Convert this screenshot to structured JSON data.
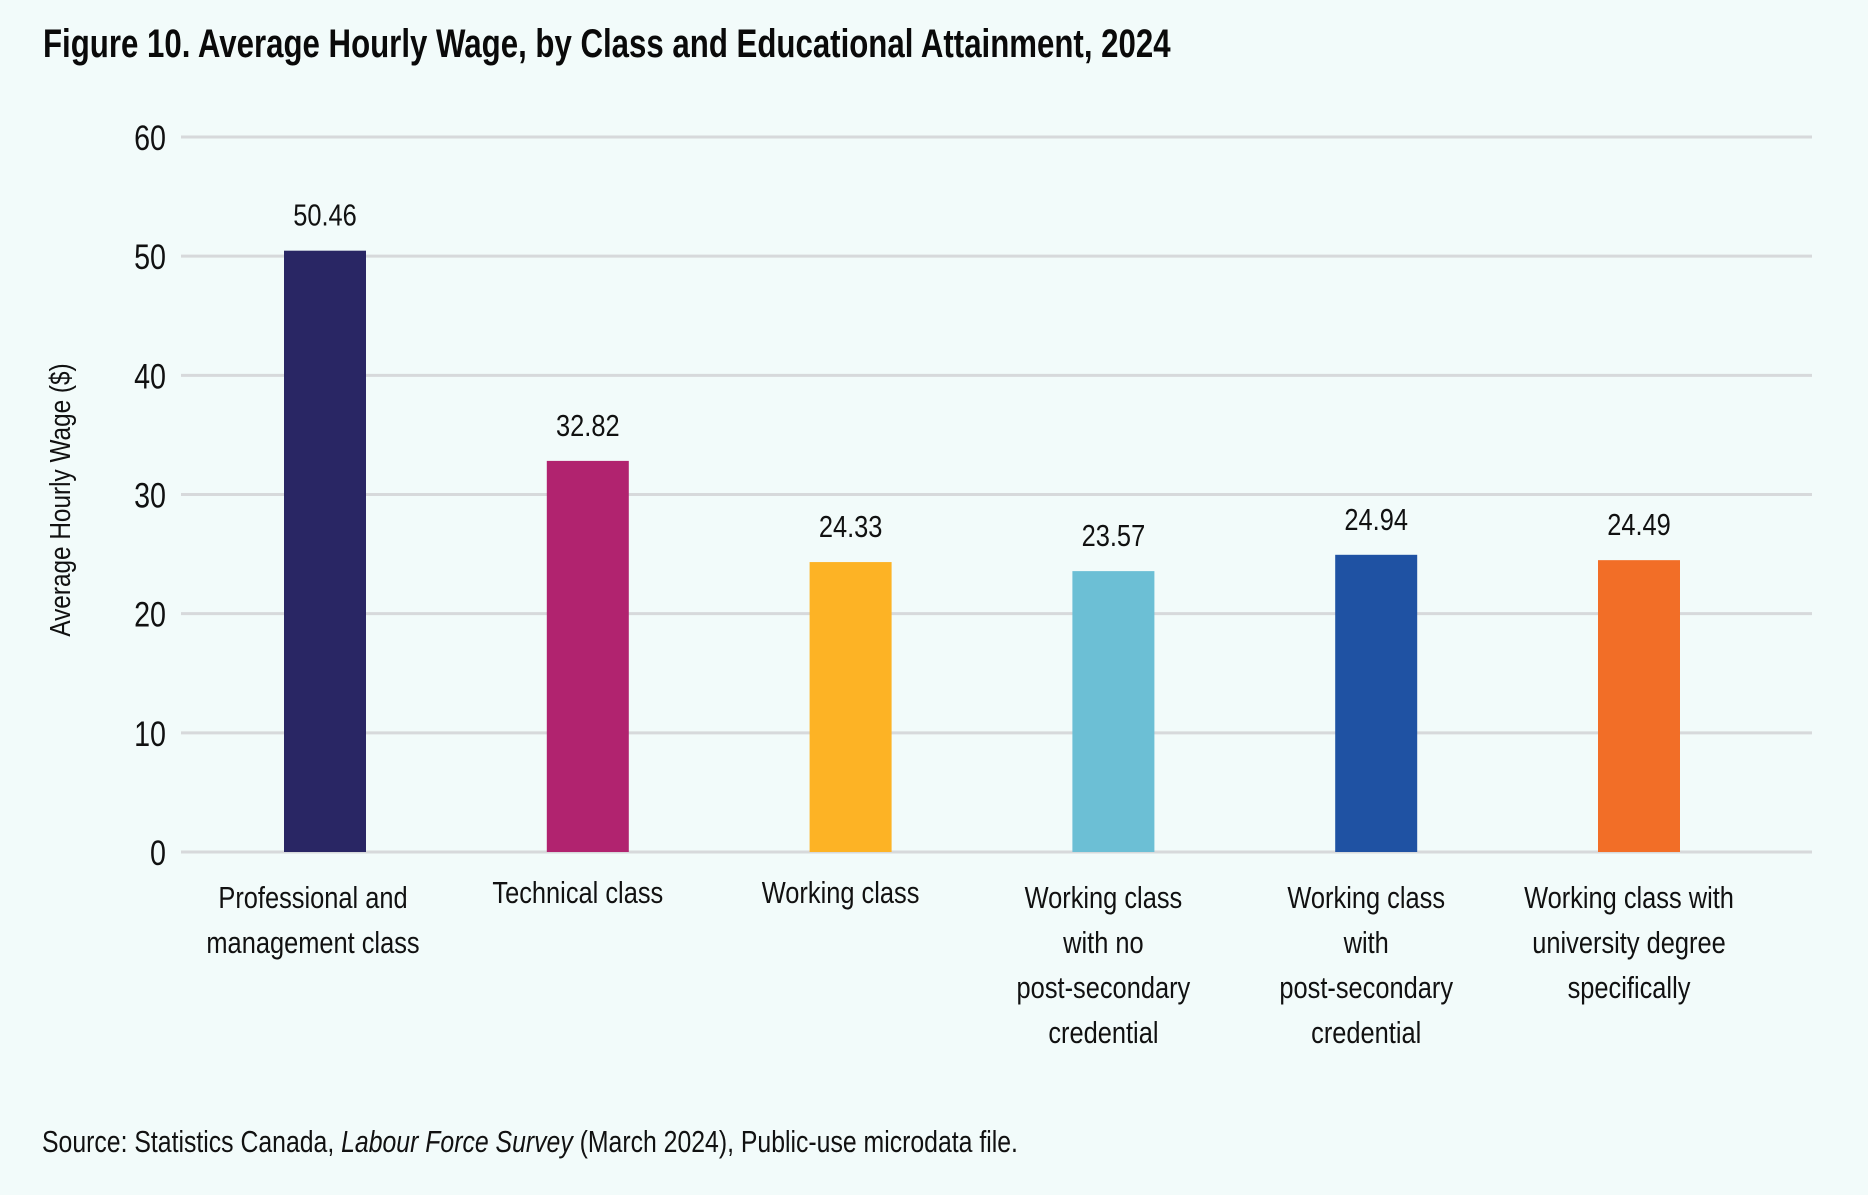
{
  "title": "Figure 10. Average Hourly Wage, by Class and Educational Attainment, 2024",
  "source": {
    "prefix": "Source: Statistics Canada, ",
    "italic": "Labour Force Survey",
    "suffix": " (March 2024), Public-use microdata file."
  },
  "chart_data": {
    "type": "bar",
    "title": "Figure 10. Average Hourly Wage, by Class and Educational Attainment, 2024",
    "xlabel": "",
    "ylabel": "Average Hourly Wage ($)",
    "ylim": [
      0,
      60
    ],
    "yticks": [
      0,
      10,
      20,
      30,
      40,
      50,
      60
    ],
    "grid": true,
    "legend": "none",
    "categories": [
      [
        "Professional and",
        "management class"
      ],
      [
        "Technical class"
      ],
      [
        "Working class"
      ],
      [
        "Working class",
        "with no",
        "post-secondary",
        "credential"
      ],
      [
        "Working class",
        "with",
        "post-secondary",
        "credential"
      ],
      [
        "Working class with",
        "university degree",
        "specifically"
      ]
    ],
    "values": [
      50.46,
      32.82,
      24.33,
      23.57,
      24.94,
      24.49
    ],
    "value_labels": [
      "50.46",
      "32.82",
      "24.33",
      "23.57",
      "24.94",
      "24.49"
    ],
    "colors": [
      "#292664",
      "#b1236f",
      "#fdb325",
      "#6cbfd5",
      "#1f52a3",
      "#f26e27"
    ],
    "gridline_color": "#d7d9db"
  }
}
